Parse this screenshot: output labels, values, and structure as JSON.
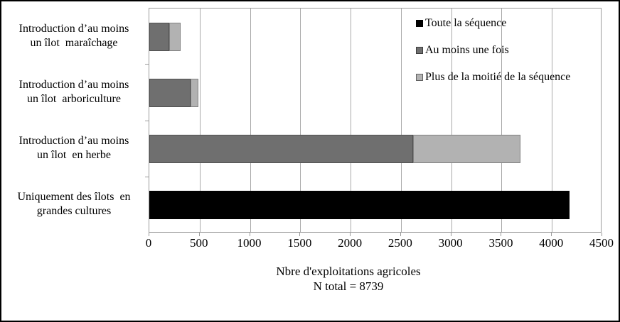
{
  "chart_data": {
    "type": "bar",
    "orientation": "horizontal",
    "stacked": true,
    "title": "",
    "xlabel_lines": [
      "Nbre d'exploitations agricoles",
      "N total = 8739"
    ],
    "xlim": [
      0,
      4500
    ],
    "xticks": [
      0,
      500,
      1000,
      1500,
      2000,
      2500,
      3000,
      3500,
      4000,
      4500
    ],
    "grid": "vertical-gridlines",
    "legend_position": "top-right-inside",
    "categories": [
      "Introduction d’au moins\nun îlot  maraîchage",
      "Introduction d’au moins\nun îlot  arboriculture",
      "Introduction d’au moins\nun îlot  en herbe",
      "Uniquement des îlots  en\ngrandes cultures"
    ],
    "series": [
      {
        "name": "Toute la séquence",
        "color": "#000000",
        "values": [
          0,
          0,
          0,
          4175
        ]
      },
      {
        "name": "Au moins une fois",
        "color": "#6f6f6f",
        "values": [
          200,
          410,
          2620,
          0
        ]
      },
      {
        "name": "Plus de la moitié de la séquence",
        "color": "#b2b2b2",
        "values": [
          110,
          80,
          1070,
          0
        ]
      }
    ],
    "colors": {
      "gridline": "#a9a9a9",
      "plot_border": "#9a9a9a",
      "frame_border": "#000000",
      "text": "#000000"
    }
  }
}
